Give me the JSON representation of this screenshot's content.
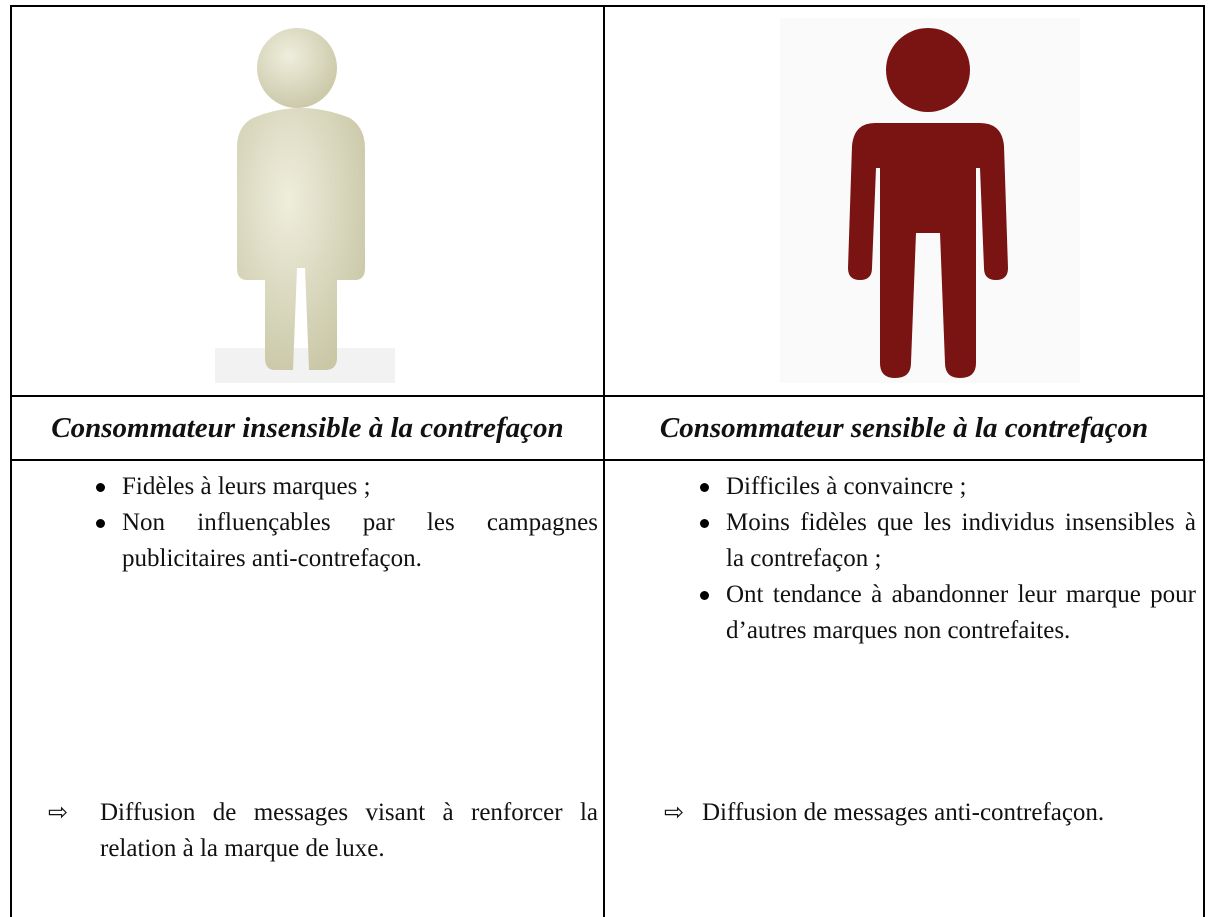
{
  "table": {
    "columns": [
      {
        "heading": "Consommateur insensible à la contrefaçon",
        "bullets": [
          "Fidèles à leurs marques ;",
          "Non influençables par les campagnes publicitaires anti-contrefaçon."
        ],
        "conclusion": "Diffusion de messages visant à renforcer la relation à la marque de luxe."
      },
      {
        "heading": "Consommateur sensible à la contrefaçon",
        "bullets": [
          "Difficiles à convaincre ;",
          "Moins fidèles que les individus insensibles à la contrefaçon ;",
          "Ont tendance à abandonner leur marque pour d’autres marques non contrefaites."
        ],
        "conclusion": "Diffusion de messages anti-contrefaçon."
      }
    ]
  }
}
